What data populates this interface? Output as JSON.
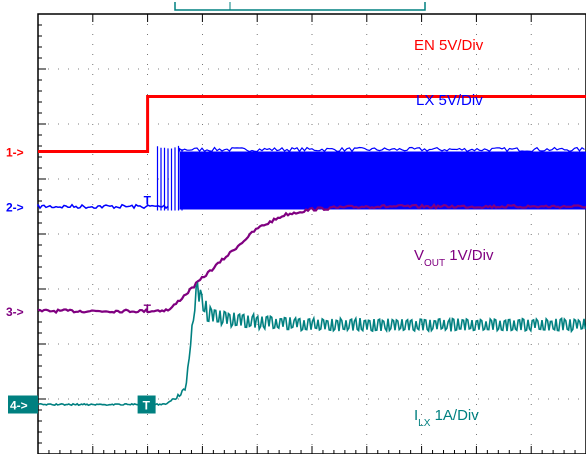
{
  "chart_data": {
    "type": "line",
    "title": "",
    "xlabel": "",
    "ylabel": "",
    "grid": true,
    "divisions": {
      "x": 10,
      "y": 8
    },
    "trigger_marker": "T",
    "channels": [
      {
        "id": "1",
        "marker_text": "1->",
        "name": "EN",
        "label": "EN 5V/Div",
        "label_parts": {
          "main": "EN",
          "sub": "",
          "scale": " 5V/Div"
        },
        "color": "#ff0000",
        "trace": "step",
        "ground_div": 5.5,
        "x": [
          0,
          2.0,
          2.0,
          10
        ],
        "y": [
          0,
          0,
          1.0,
          1.0
        ]
      },
      {
        "id": "2",
        "marker_text": "2->",
        "name": "LX",
        "label": "LX 5V/Div",
        "label_parts": {
          "main": "LX",
          "sub": "",
          "scale": " 5V/Div"
        },
        "color": "#0000ff",
        "trace": "switching",
        "ground_div": 4.5,
        "switching_start_div": 2.4,
        "x": [
          0,
          2.4,
          10
        ],
        "y_low": [
          0,
          0,
          0
        ],
        "y_high": [
          0,
          1.0,
          1.0
        ]
      },
      {
        "id": "3",
        "marker_text": "3->",
        "name": "VOUT",
        "label": "VOUT 1V/Div",
        "label_parts": {
          "main": "V",
          "sub": "OUT",
          "scale": " 1V/Div"
        },
        "color": "#800080",
        "trace": "line",
        "ground_div": 2.6,
        "x": [
          0,
          2.0,
          2.4,
          3.0,
          3.5,
          4.0,
          4.5,
          5.0,
          5.5,
          6.0,
          10
        ],
        "y": [
          0,
          0,
          0.02,
          0.6,
          1.05,
          1.5,
          1.75,
          1.85,
          1.88,
          1.9,
          1.9
        ]
      },
      {
        "id": "4",
        "marker_text": "4->",
        "name": "ILX",
        "label": "ILX 1A/Div",
        "label_parts": {
          "main": "I",
          "sub": "LX",
          "scale": " 1A/Div"
        },
        "color": "#008080",
        "trace": "ripple",
        "ground_div": 0.9,
        "x": [
          0,
          2.3,
          2.5,
          2.7,
          2.82,
          2.9,
          3.1,
          3.5,
          4.0,
          5.0,
          10
        ],
        "y": [
          0,
          0,
          0.1,
          0.3,
          1.5,
          2.1,
          1.65,
          1.55,
          1.5,
          1.45,
          1.45
        ],
        "ripple": [
          0,
          0,
          0.05,
          0.05,
          0.15,
          0.3,
          0.3,
          0.28,
          0.25,
          0.22,
          0.22
        ]
      }
    ]
  }
}
